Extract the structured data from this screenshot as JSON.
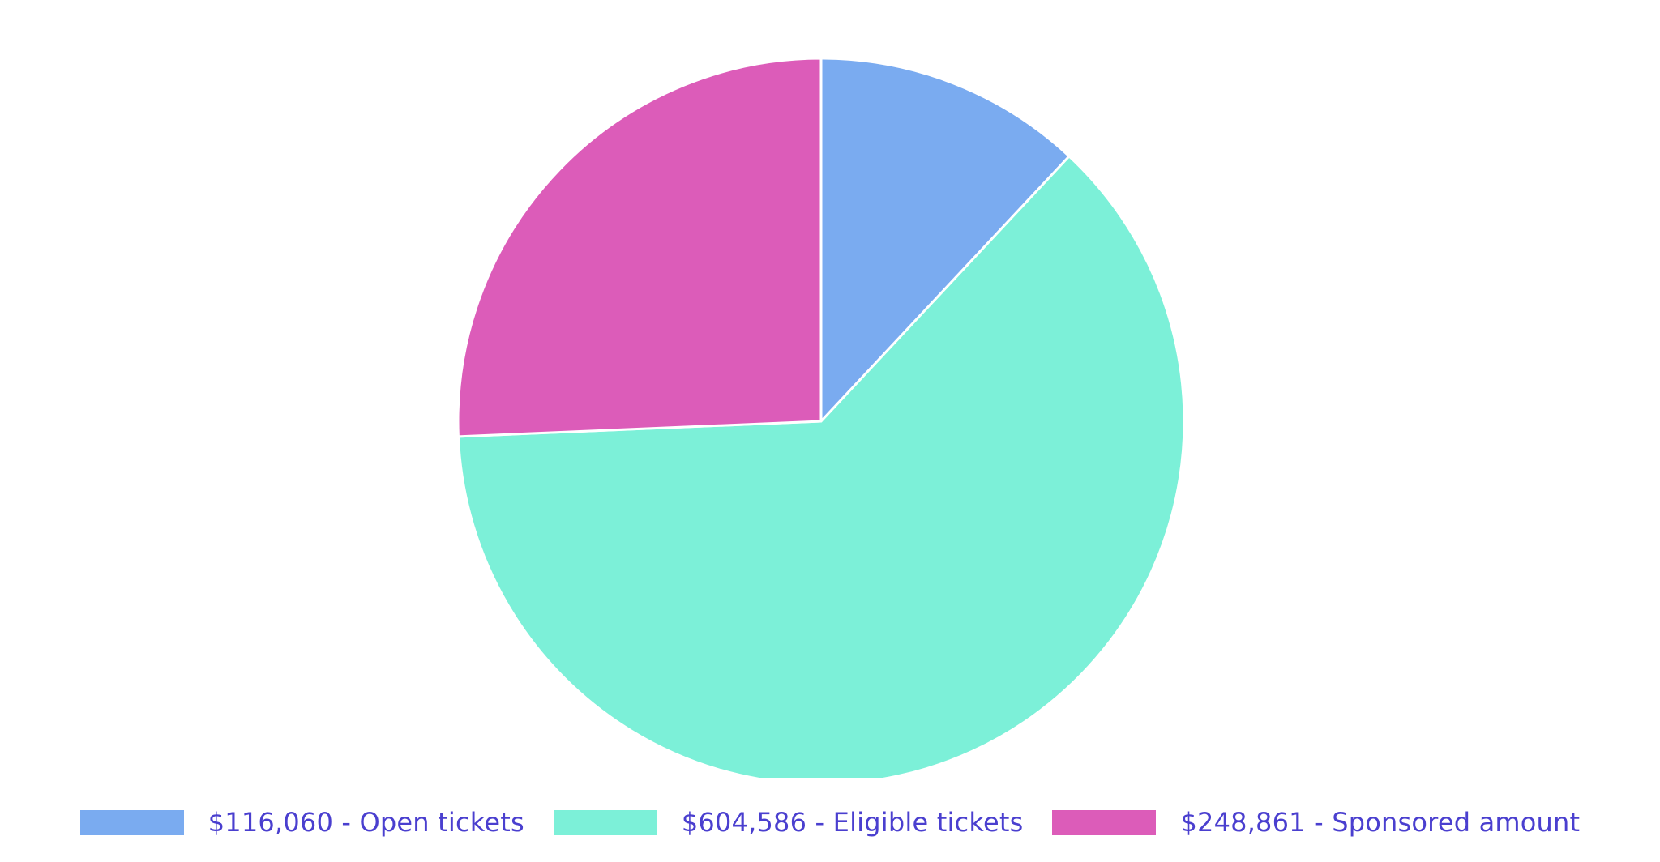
{
  "chart_data": {
    "type": "pie",
    "series": [
      {
        "name": "Pie",
        "slices": [
          {
            "label": "Open tickets",
            "value": 116060,
            "display": "$116,060 - Open tickets",
            "color": "#7aabf0"
          },
          {
            "label": "Eligible tickets",
            "value": 604586,
            "display": "$604,586 - Eligible tickets",
            "color": "#7cf0d8"
          },
          {
            "label": "Sponsored amount",
            "value": 248861,
            "display": "$248,861 - Sponsored amount",
            "color": "#dc5cb9"
          }
        ]
      }
    ],
    "start_angle": "top",
    "direction": "clockwise",
    "legend_position": "bottom",
    "title": "",
    "legend_text_color": "#4a3fcf",
    "slice_border_color": "#ffffff"
  }
}
